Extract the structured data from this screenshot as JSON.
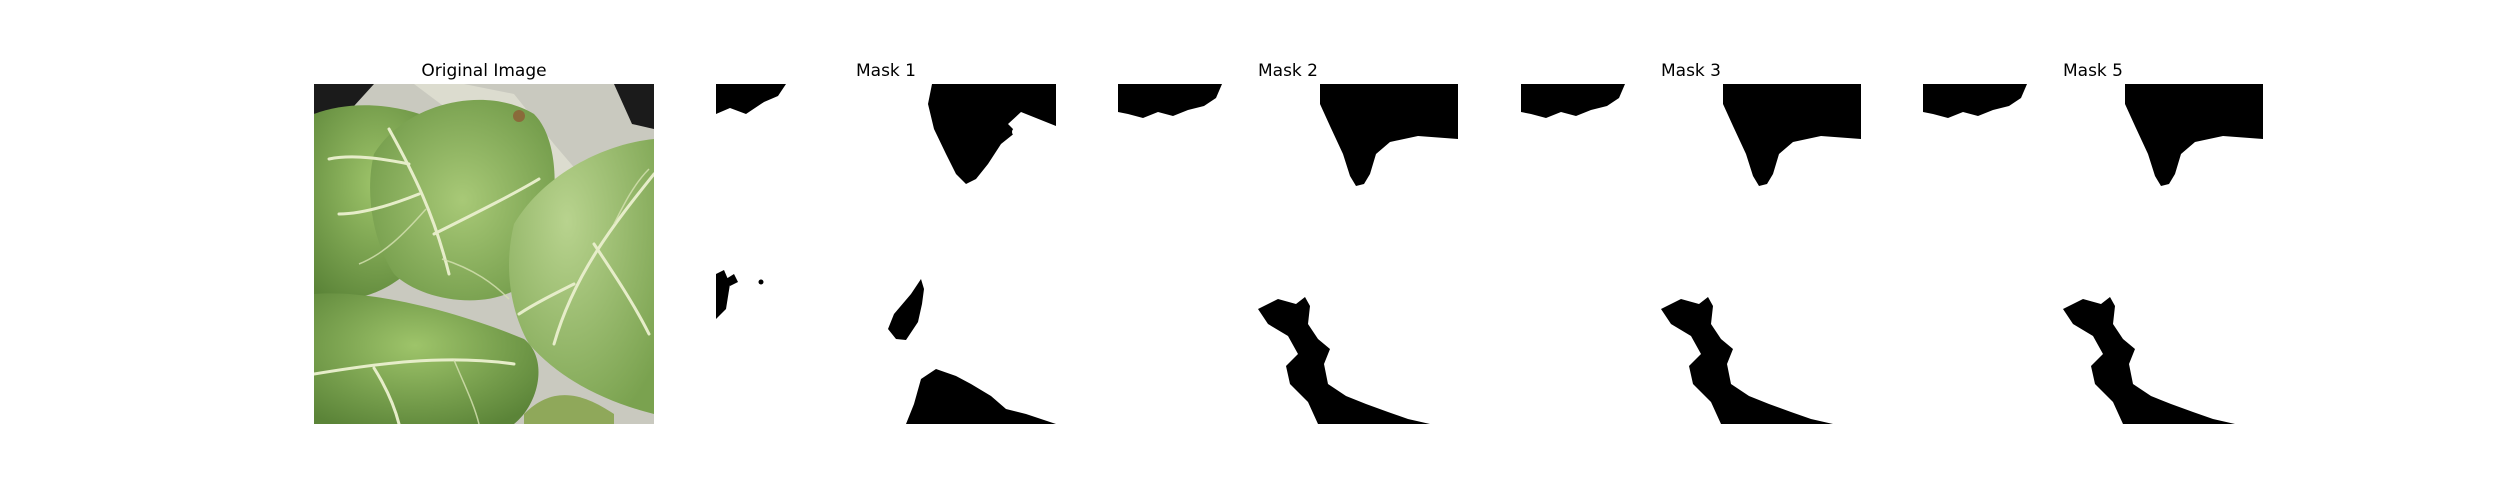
{
  "panels": [
    {
      "title": "Original Image"
    },
    {
      "title": "Mask 1"
    },
    {
      "title": "Mask 2"
    },
    {
      "title": "Mask 3"
    },
    {
      "title": "Mask 5"
    }
  ],
  "colors": {
    "mask_fg": "#000000",
    "mask_bg": "#ffffff",
    "leaf_dark": "#5f8a3c",
    "leaf_mid": "#86ad55",
    "leaf_light": "#b5cf86",
    "vein": "#e6edc9",
    "background_dark": "#1b1b1b"
  }
}
